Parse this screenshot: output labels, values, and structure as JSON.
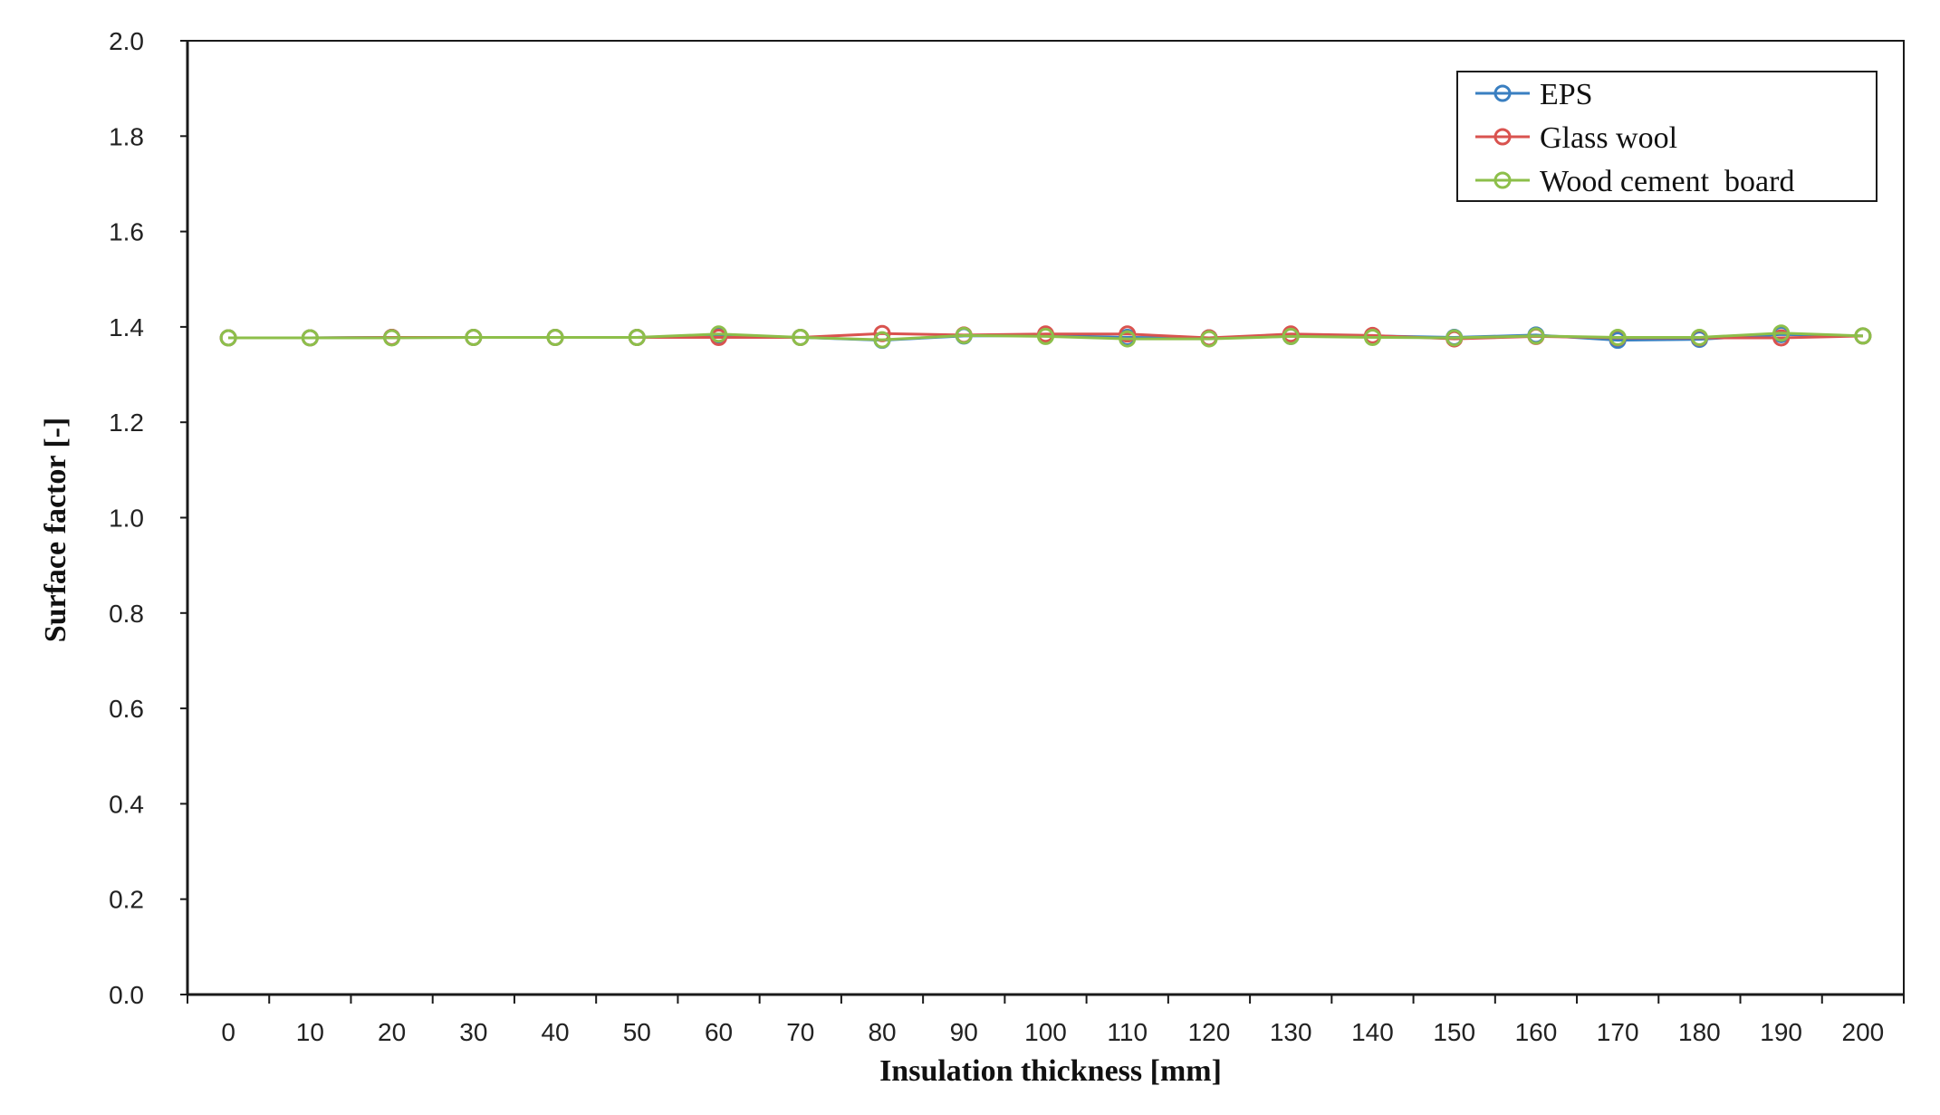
{
  "chart_data": {
    "type": "line",
    "title": "",
    "xlabel": "Insulation thickness [mm]",
    "ylabel": "Surface factor [-]",
    "x": [
      0,
      10,
      20,
      30,
      40,
      50,
      60,
      70,
      80,
      90,
      100,
      110,
      120,
      130,
      140,
      150,
      160,
      170,
      180,
      190,
      200
    ],
    "x_tick_labels": [
      "0",
      "10",
      "20",
      "30",
      "40",
      "50",
      "60",
      "70",
      "80",
      "90",
      "100",
      "110",
      "120",
      "130",
      "140",
      "150",
      "160",
      "170",
      "180",
      "190",
      "200"
    ],
    "ylim": [
      0.0,
      2.0
    ],
    "y_tick_labels": [
      "0.0",
      "0.2",
      "0.4",
      "0.6",
      "0.8",
      "1.0",
      "1.2",
      "1.4",
      "1.6",
      "1.8",
      "2.0"
    ],
    "grid": false,
    "legend_position": "top-right",
    "series": [
      {
        "name": "EPS",
        "color": "#3a7fc1",
        "values": [
          1.377,
          1.377,
          1.378,
          1.378,
          1.378,
          1.378,
          1.382,
          1.378,
          1.372,
          1.381,
          1.382,
          1.378,
          1.377,
          1.38,
          1.381,
          1.378,
          1.383,
          1.372,
          1.374,
          1.384,
          1.381
        ]
      },
      {
        "name": "Glass wool",
        "color": "#d9534f",
        "values": [
          1.377,
          1.377,
          1.378,
          1.378,
          1.378,
          1.378,
          1.378,
          1.378,
          1.386,
          1.383,
          1.385,
          1.385,
          1.377,
          1.385,
          1.382,
          1.375,
          1.38,
          1.377,
          1.377,
          1.377,
          1.381
        ]
      },
      {
        "name": "Wood cement  board",
        "color": "#8dbf4a",
        "values": [
          1.377,
          1.377,
          1.377,
          1.378,
          1.378,
          1.378,
          1.385,
          1.378,
          1.373,
          1.382,
          1.38,
          1.375,
          1.375,
          1.38,
          1.378,
          1.377,
          1.381,
          1.378,
          1.378,
          1.387,
          1.381
        ]
      }
    ]
  }
}
